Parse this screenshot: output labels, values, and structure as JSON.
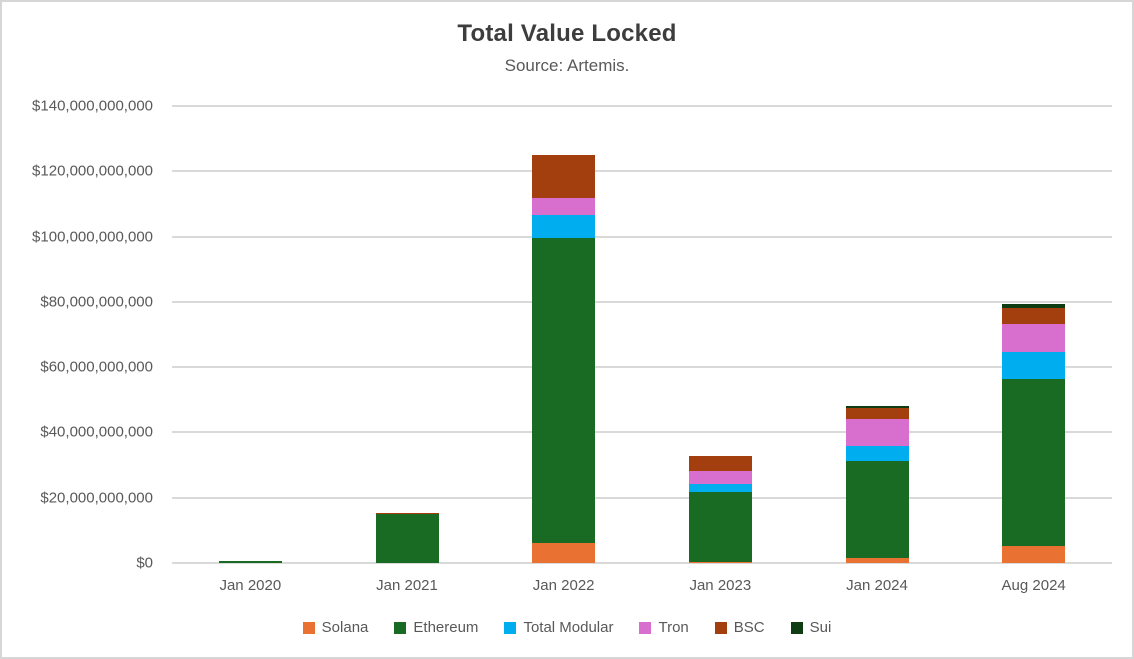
{
  "chart_data": {
    "type": "bar",
    "stacked": true,
    "title": "Total Value Locked",
    "subtitle": "Source: Artemis.",
    "categories": [
      "Jan 2020",
      "Jan 2021",
      "Jan 2022",
      "Jan 2023",
      "Jan 2024",
      "Aug 2024"
    ],
    "values_unit": "USD billions",
    "series": [
      {
        "name": "Solana",
        "color": "#E97132",
        "values": [
          0,
          0,
          6.2,
          0.3,
          1.5,
          5.1
        ]
      },
      {
        "name": "Ethereum",
        "color": "#196B24",
        "values": [
          0.6,
          14.9,
          93.3,
          21.6,
          29.7,
          51.2
        ]
      },
      {
        "name": "Total Modular",
        "color": "#00AEEF",
        "values": [
          0,
          0,
          7.1,
          2.2,
          4.6,
          8.4
        ]
      },
      {
        "name": "Tron",
        "color": "#D86ECD",
        "values": [
          0,
          0,
          5.2,
          4.2,
          8.2,
          8.5
        ]
      },
      {
        "name": "BSC",
        "color": "#A33E0F",
        "values": [
          0,
          0.5,
          13.2,
          4.6,
          3.4,
          4.8
        ]
      },
      {
        "name": "Sui",
        "color": "#0E3D14",
        "values": [
          0,
          0,
          0,
          0,
          0.6,
          1.3
        ]
      }
    ],
    "totals": [
      0.6,
      15.4,
      125.0,
      32.9,
      47.9,
      79.3
    ],
    "ylim": [
      0,
      140
    ],
    "yticks": [
      {
        "value": 0,
        "label": "$0"
      },
      {
        "value": 20,
        "label": "$20,000,000,000"
      },
      {
        "value": 40,
        "label": "$40,000,000,000"
      },
      {
        "value": 60,
        "label": "$60,000,000,000"
      },
      {
        "value": 80,
        "label": "$80,000,000,000"
      },
      {
        "value": 100,
        "label": "$100,000,000,000"
      },
      {
        "value": 120,
        "label": "$120,000,000,000"
      },
      {
        "value": 140,
        "label": "$140,000,000,000"
      }
    ],
    "grid": true,
    "legend_position": "bottom",
    "gridline_color": "#d9d9d9",
    "title_color": "#3d3d3d",
    "label_color": "#595959"
  }
}
